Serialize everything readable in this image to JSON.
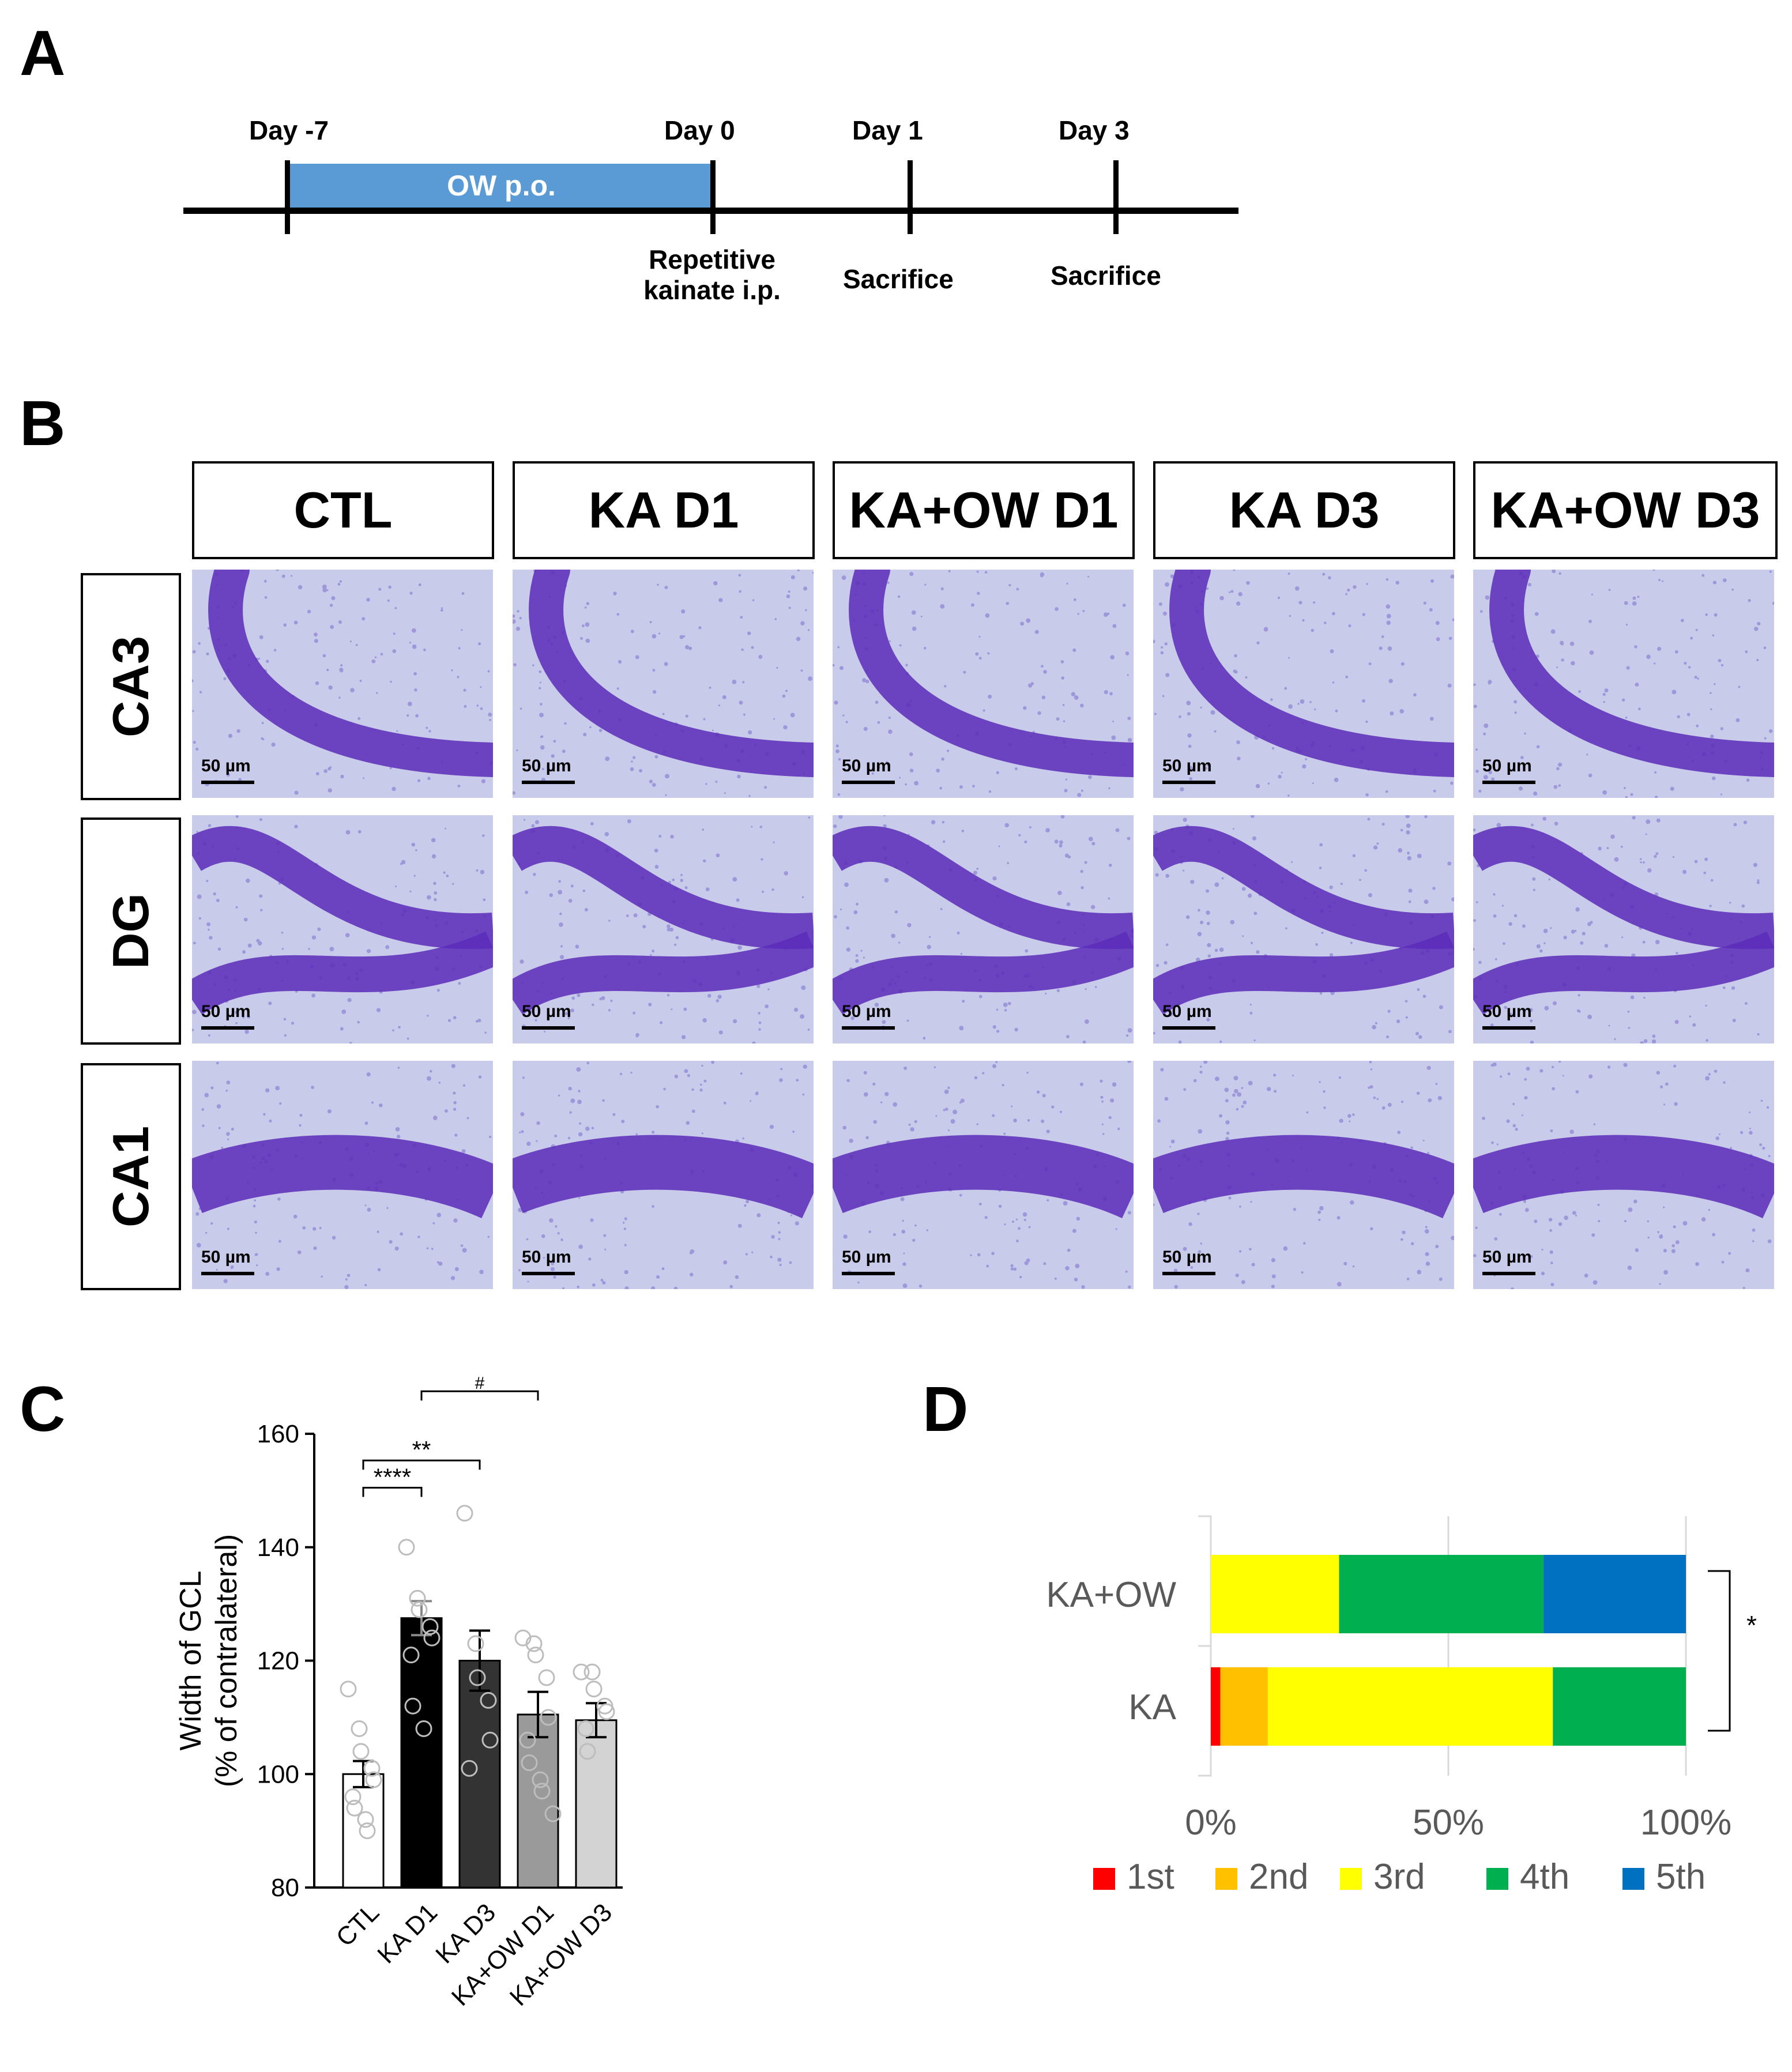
{
  "panels": {
    "a": "A",
    "b": "B",
    "c": "C",
    "d": "D"
  },
  "timeline": {
    "days": [
      "Day -7",
      "Day 0",
      "Day 1",
      "Day 3"
    ],
    "bar_label": "OW p.o.",
    "event_day0": [
      "Repetitive",
      "kainate i.p."
    ],
    "event_day1": "Sacrifice",
    "event_day3": "Sacrifice",
    "bar_color": "#5B9BD5"
  },
  "histology": {
    "columns": [
      "CTL",
      "KA D1",
      "KA+OW D1",
      "KA D3",
      "KA+OW D3"
    ],
    "rows": [
      "CA3",
      "DG",
      "CA1"
    ],
    "scale_label": "50 µm",
    "stain_colors": {
      "background": "#C9CBEA",
      "cells": "#5A2CB8"
    }
  },
  "chart_data": [
    {
      "panel": "C",
      "type": "bar",
      "categories": [
        "CTL",
        "KA D1",
        "KA D3",
        "KA+OW D1",
        "KA+OW D3"
      ],
      "values": [
        100,
        127.5,
        120,
        110.5,
        109.5
      ],
      "sem": [
        2.3,
        3,
        5.3,
        4,
        3
      ],
      "points": [
        [
          115,
          108,
          104,
          101,
          99,
          96,
          94,
          92,
          90
        ],
        [
          140,
          131,
          129,
          126,
          124,
          121,
          112,
          108
        ],
        [
          146,
          123,
          117,
          113,
          106,
          101
        ],
        [
          124,
          123,
          121,
          117,
          110,
          106,
          102,
          99,
          97,
          93
        ],
        [
          118,
          118,
          115,
          112,
          111,
          108,
          104
        ]
      ],
      "colors": [
        "#FFFFFF",
        "#000000",
        "#333333",
        "#9A9A9A",
        "#D3D3D3"
      ],
      "ylabel": [
        "Width of GCL",
        "(% of contralateral)"
      ],
      "ylim": [
        80,
        160
      ],
      "yticks": [
        80,
        100,
        120,
        140,
        160
      ],
      "significance": [
        {
          "from": 0,
          "to": 1,
          "label": "****"
        },
        {
          "from": 0,
          "to": 2,
          "label": "**"
        },
        {
          "from": 1,
          "to": 3,
          "label": "#"
        }
      ]
    },
    {
      "panel": "D",
      "type": "bar",
      "orientation": "horizontal-stacked-percent",
      "categories": [
        "KA+OW",
        "KA"
      ],
      "series": [
        {
          "name": "1st",
          "color": "#FF0000",
          "values": [
            0,
            2
          ]
        },
        {
          "name": "2nd",
          "color": "#FFC000",
          "values": [
            0,
            10
          ]
        },
        {
          "name": "3rd",
          "color": "#FFFF00",
          "values": [
            27,
            60
          ]
        },
        {
          "name": "4th",
          "color": "#00B050",
          "values": [
            43,
            28
          ]
        },
        {
          "name": "5th",
          "color": "#0070C0",
          "values": [
            30,
            0
          ]
        }
      ],
      "xticks": [
        "0%",
        "50%",
        "100%"
      ],
      "significance": "*"
    }
  ]
}
